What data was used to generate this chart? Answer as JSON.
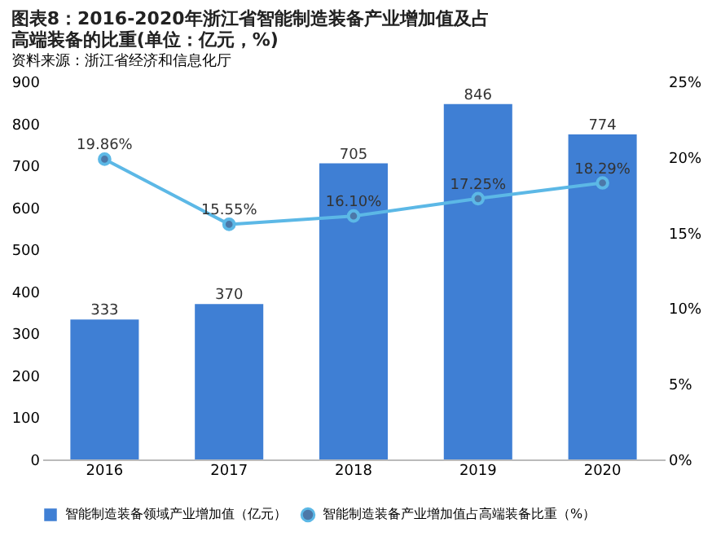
{
  "chart_data": {
    "type": "bar",
    "title": "图表8：2016-2020年浙江省智能制造装备产业增加值及占高端装备的比重(单位：亿元，%)",
    "categories": [
      "2016",
      "2017",
      "2018",
      "2019",
      "2020"
    ],
    "series": [
      {
        "name": "智能制造装备领域产业增加值（亿元）",
        "color": "#3f7fd4",
        "values": [
          333,
          370,
          705,
          846,
          774
        ],
        "value_labels": [
          "333",
          "370",
          "705",
          "846",
          "774"
        ]
      },
      {
        "name": "智能制造装备产业增加值占高端装备比重（%）",
        "type": "line",
        "axis": "y2",
        "color": "#5cb8e6",
        "marker": "circle",
        "values": [
          19.86,
          15.55,
          16.1,
          17.25,
          18.29
        ],
        "value_labels": [
          "19.86%",
          "15.55%",
          "16.10%",
          "17.25%",
          "18.29%"
        ]
      }
    ],
    "ylim": [
      0,
      900
    ],
    "yticks": [
      0,
      100,
      200,
      300,
      400,
      500,
      600,
      700,
      800,
      900
    ],
    "y2lim": [
      0,
      25
    ],
    "y2ticks": [
      {
        "value": 0,
        "label": "0%"
      },
      {
        "value": 5,
        "label": "5%"
      },
      {
        "value": 10,
        "label": "10%"
      },
      {
        "value": 15,
        "label": "15%"
      },
      {
        "value": 20,
        "label": "20%"
      },
      {
        "value": 25,
        "label": "25%"
      }
    ],
    "legend": "bottom",
    "grid": false,
    "annotations": [
      "资料来源：浙江省经济和信息化厅"
    ]
  }
}
